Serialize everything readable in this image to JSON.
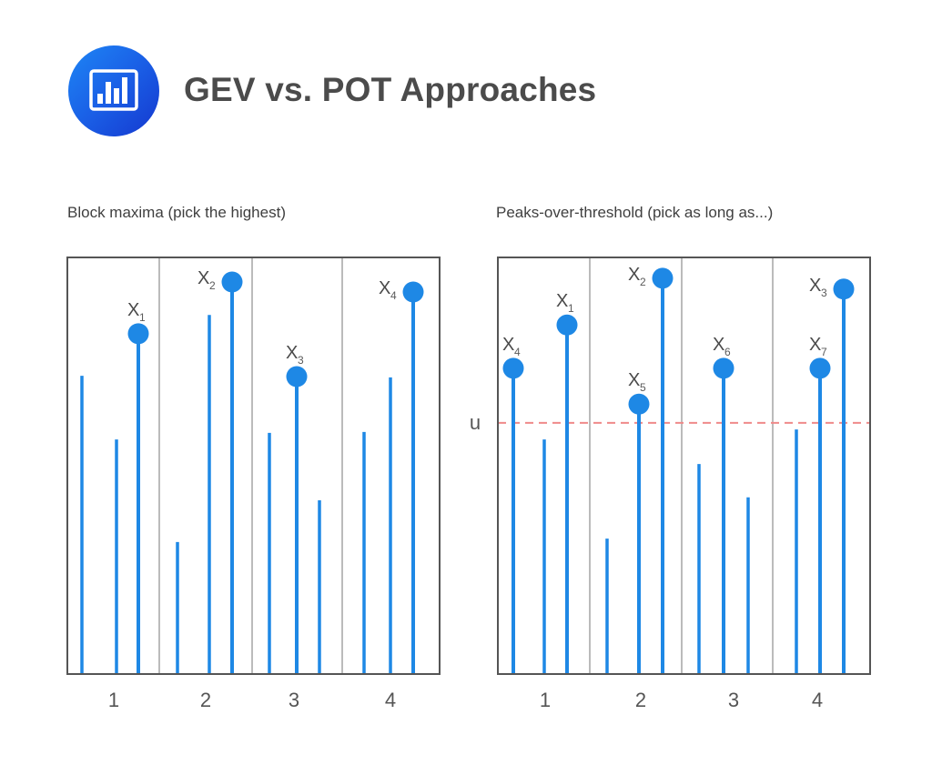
{
  "header": {
    "title": "GEV vs. POT Approaches",
    "icon": "bar-chart-icon"
  },
  "colors": {
    "bar": "#1e88e5",
    "threshold": "#ef8a8a",
    "frame": "#555555",
    "divider": "#777777",
    "icon_bg_start": "#1e86f5",
    "icon_bg_end": "#1538cf"
  },
  "chart_data": [
    {
      "type": "bar",
      "subtype": "stem",
      "title": "Block maxima (pick the highest)",
      "xlabel": "",
      "ylabel": "",
      "categories": [
        "1",
        "2",
        "3",
        "4"
      ],
      "ylim": [
        0,
        100
      ],
      "grid": false,
      "blocks": [
        {
          "label": "1",
          "values": [
            71.6,
            56.3,
            81.7
          ],
          "markers": [
            null,
            null,
            {
              "index": 2,
              "label": "X",
              "sub": "1"
            }
          ]
        },
        {
          "label": "2",
          "values": [
            31.7,
            86.2,
            94.1
          ],
          "markers": [
            null,
            null,
            {
              "index": 2,
              "label": "X",
              "sub": "2"
            }
          ]
        },
        {
          "label": "3",
          "values": [
            57.9,
            71.4,
            41.7
          ],
          "markers": [
            null,
            {
              "index": 1,
              "label": "X",
              "sub": "3"
            },
            null
          ]
        },
        {
          "label": "4",
          "values": [
            58.1,
            71.2,
            91.7
          ],
          "markers": [
            null,
            null,
            {
              "index": 2,
              "label": "X",
              "sub": "4"
            }
          ]
        }
      ]
    },
    {
      "type": "bar",
      "subtype": "stem",
      "title": "Peaks-over-threshold (pick as long as...)",
      "xlabel": "",
      "ylabel": "",
      "categories": [
        "1",
        "2",
        "3",
        "4"
      ],
      "ylim": [
        0,
        100
      ],
      "grid": false,
      "threshold": {
        "label": "u",
        "value": 60.3,
        "style": "dashed"
      },
      "blocks": [
        {
          "label": "1",
          "values": [
            73.4,
            56.3,
            83.8
          ],
          "markers": [
            {
              "index": 0,
              "label": "X",
              "sub": "4"
            },
            null,
            {
              "index": 2,
              "label": "X",
              "sub": "1"
            }
          ]
        },
        {
          "label": "2",
          "values": [
            32.5,
            64.8,
            95.0
          ],
          "markers": [
            null,
            {
              "index": 1,
              "label": "X",
              "sub": "5"
            },
            {
              "index": 2,
              "label": "X",
              "sub": "2"
            }
          ]
        },
        {
          "label": "3",
          "values": [
            50.4,
            73.4,
            42.4
          ],
          "markers": [
            null,
            {
              "index": 1,
              "label": "X",
              "sub": "6"
            },
            null
          ]
        },
        {
          "label": "4",
          "values": [
            58.7,
            73.4,
            92.4
          ],
          "markers": [
            null,
            {
              "index": 1,
              "label": "X",
              "sub": "7"
            },
            {
              "index": 2,
              "label": "X",
              "sub": "3"
            }
          ]
        }
      ]
    }
  ]
}
